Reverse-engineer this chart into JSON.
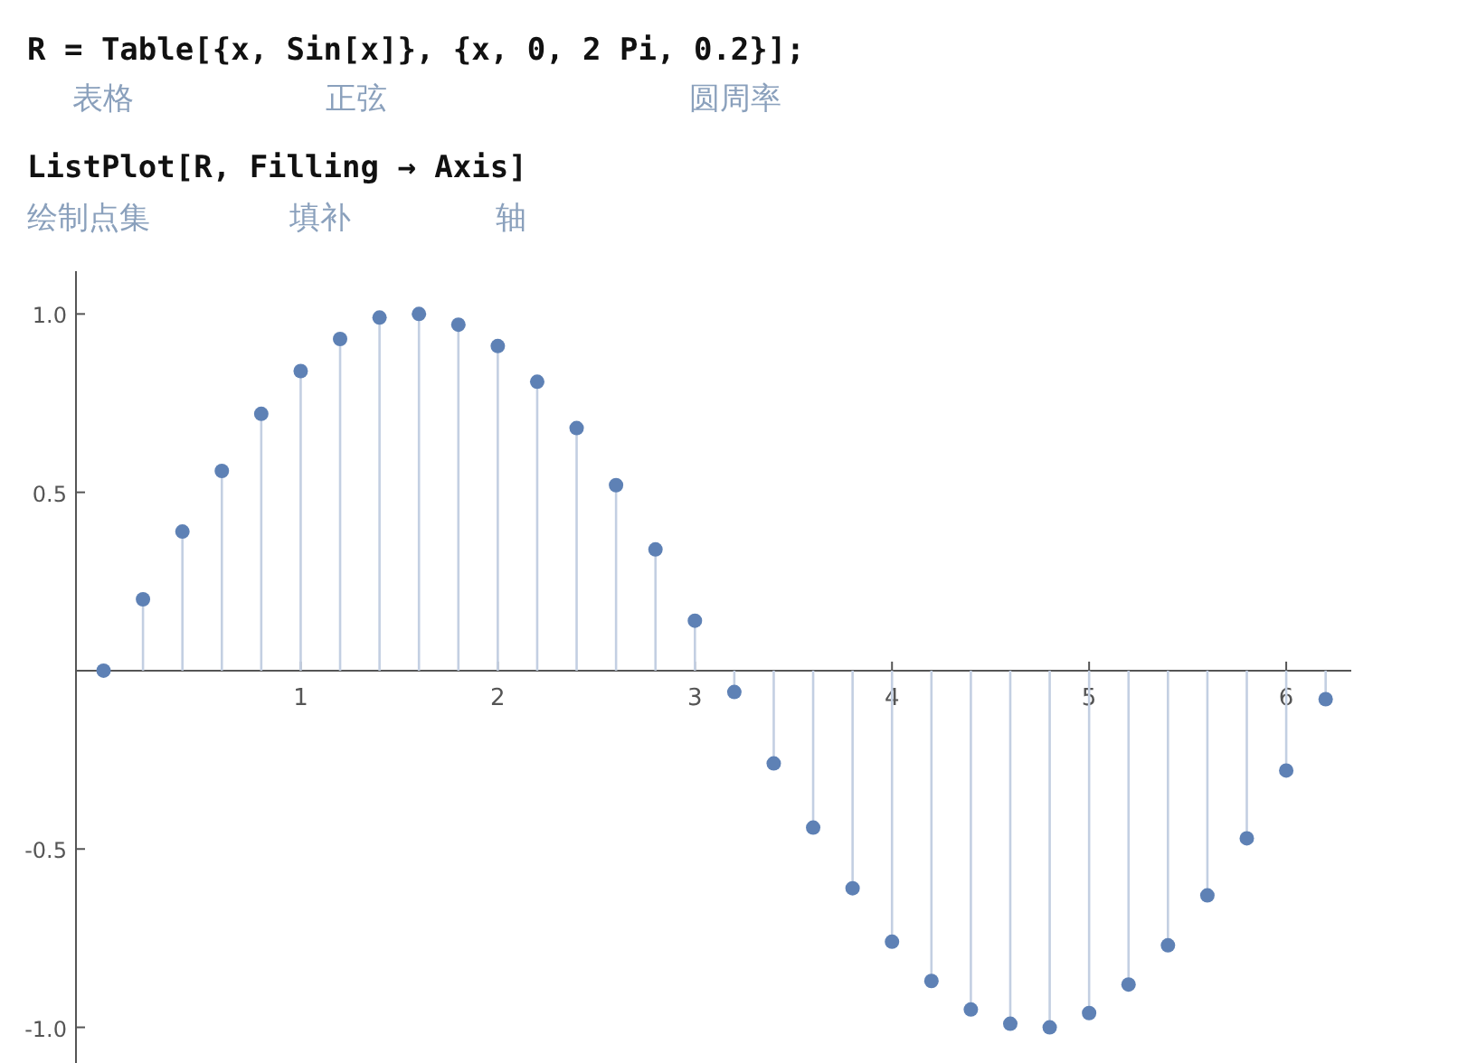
{
  "chart_data": {
    "type": "lollipop",
    "annotations": [
      "R = Table[{x, Sin[x]}, {x, 0, 2 Pi, 0.2}];",
      "表格",
      "正弦",
      "圆周率",
      "ListPlot[R, Filling → Axis]",
      "绘制点集",
      "填补",
      "轴"
    ],
    "x": [
      0,
      0.2,
      0.4,
      0.6,
      0.8,
      1.0,
      1.2,
      1.4,
      1.6,
      1.8,
      2.0,
      2.2,
      2.4,
      2.6,
      2.8,
      3.0,
      3.2,
      3.4,
      3.6,
      3.8,
      4.0,
      4.2,
      4.4,
      4.6,
      4.8,
      5.0,
      5.2,
      5.4,
      5.6,
      5.8,
      6.0,
      6.2
    ],
    "series": [
      {
        "color": "#5e81b5",
        "values": [
          0,
          0.2,
          0.39,
          0.56,
          0.72,
          0.84,
          0.93,
          0.99,
          1.0,
          0.97,
          0.91,
          0.81,
          0.68,
          0.52,
          0.34,
          0.14,
          -0.06,
          -0.26,
          -0.44,
          -0.61,
          -0.76,
          -0.87,
          -0.95,
          -0.99,
          -1.0,
          -0.96,
          -0.88,
          -0.77,
          -0.63,
          -0.47,
          -0.28,
          -0.08
        ]
      }
    ],
    "xlim": [
      -0.14,
      6.33
    ],
    "ylim": [
      -1.1,
      1.12
    ],
    "xticks": [
      1,
      2,
      3,
      4,
      5,
      6
    ],
    "yticks": [
      {
        "value": -1,
        "label": "-1.0"
      },
      {
        "value": -0.5,
        "label": "-0.5"
      },
      {
        "value": 0.5,
        "label": "0.5"
      },
      {
        "value": 1,
        "label": "1.0"
      }
    ],
    "marker": "circle",
    "grid": false
  }
}
